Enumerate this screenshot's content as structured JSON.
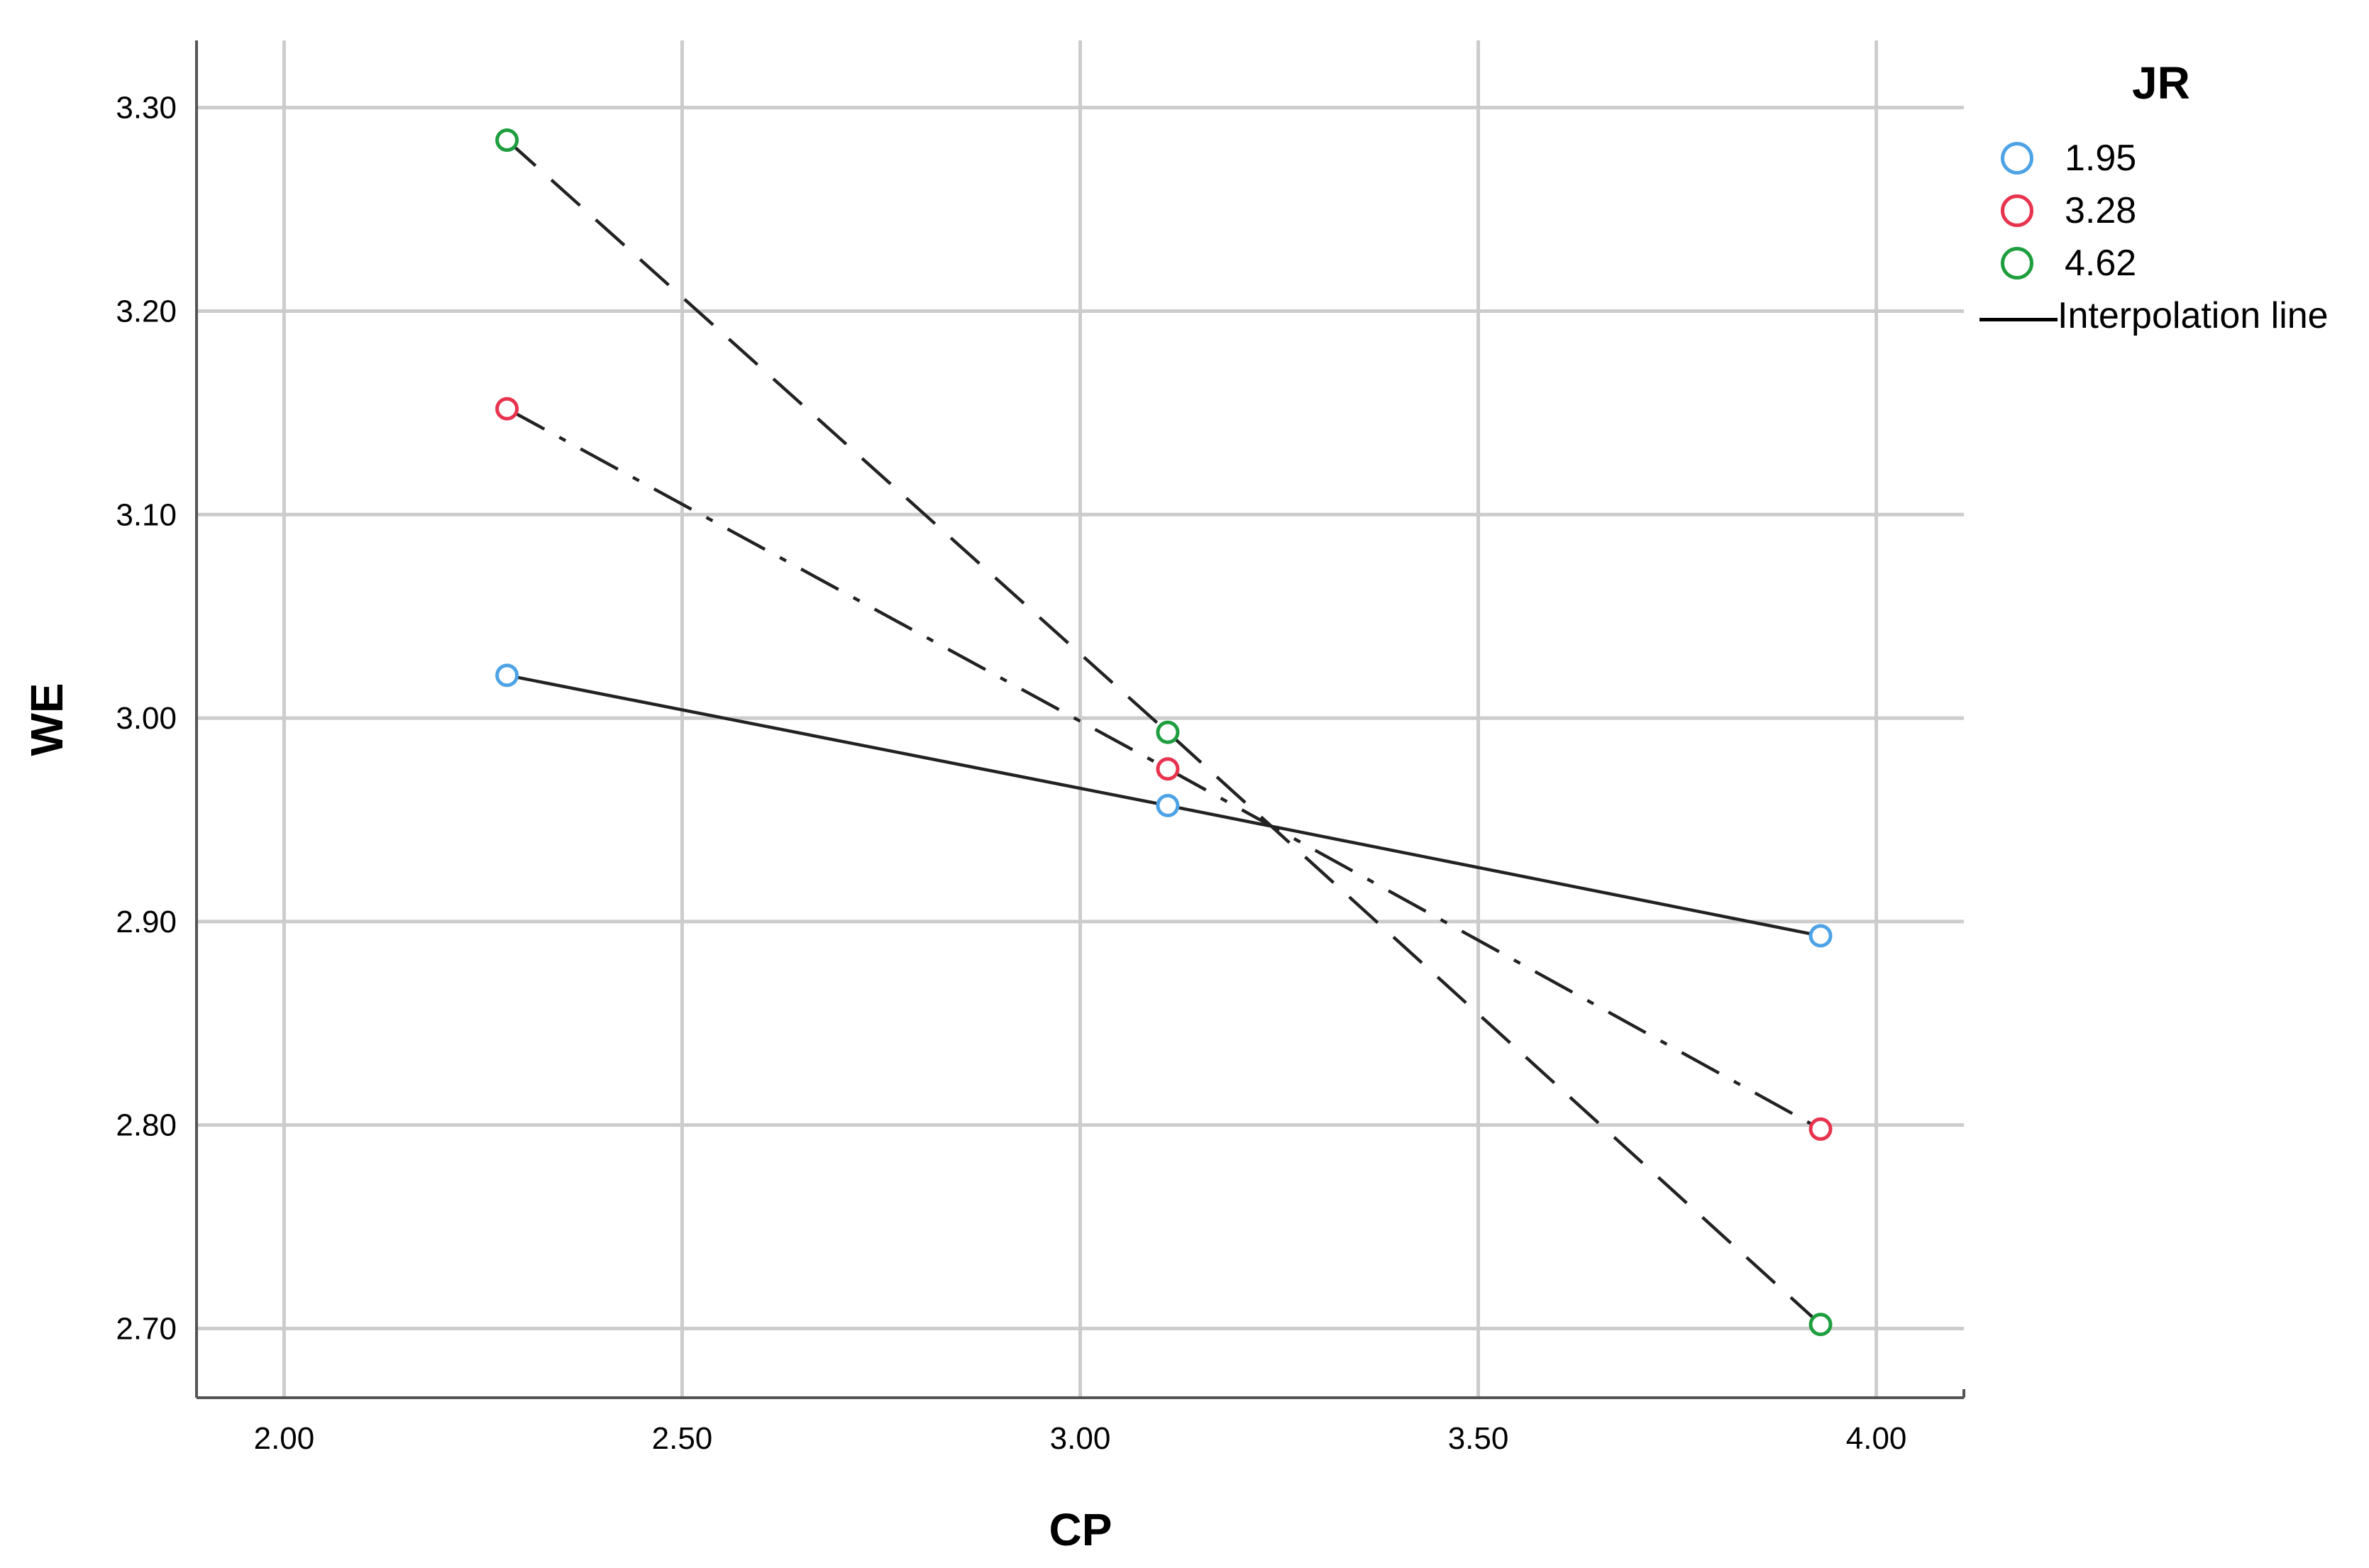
{
  "chart_data": {
    "type": "line",
    "xlabel": "CP",
    "ylabel": "WE",
    "xlim": [
      1.89,
      4.11
    ],
    "ylim": [
      2.666,
      3.333
    ],
    "x_ticks": [
      "2.00",
      "2.50",
      "3.00",
      "3.50",
      "4.00"
    ],
    "x_tick_values": [
      2.0,
      2.5,
      3.0,
      3.5,
      4.0
    ],
    "y_ticks": [
      "2.70",
      "2.80",
      "2.90",
      "3.00",
      "3.10",
      "3.20",
      "3.30"
    ],
    "y_tick_values": [
      2.7,
      2.8,
      2.9,
      3.0,
      3.1,
      3.2,
      3.3
    ],
    "grid": true,
    "legend": {
      "title": "JR",
      "placement": "right",
      "interpolation_label": "Interpolation line"
    },
    "x": [
      2.28,
      3.11,
      3.93
    ],
    "series": [
      {
        "name": "1.95",
        "color": "#4da3e6",
        "line_style": "solid",
        "values": [
          3.021,
          2.957,
          2.893
        ]
      },
      {
        "name": "3.28",
        "color": "#e8334f",
        "line_style": "dash-dot",
        "values": [
          3.152,
          2.975,
          2.798
        ]
      },
      {
        "name": "4.62",
        "color": "#1e9e3e",
        "line_style": "dashed",
        "values": [
          3.284,
          2.993,
          2.702
        ]
      }
    ]
  }
}
